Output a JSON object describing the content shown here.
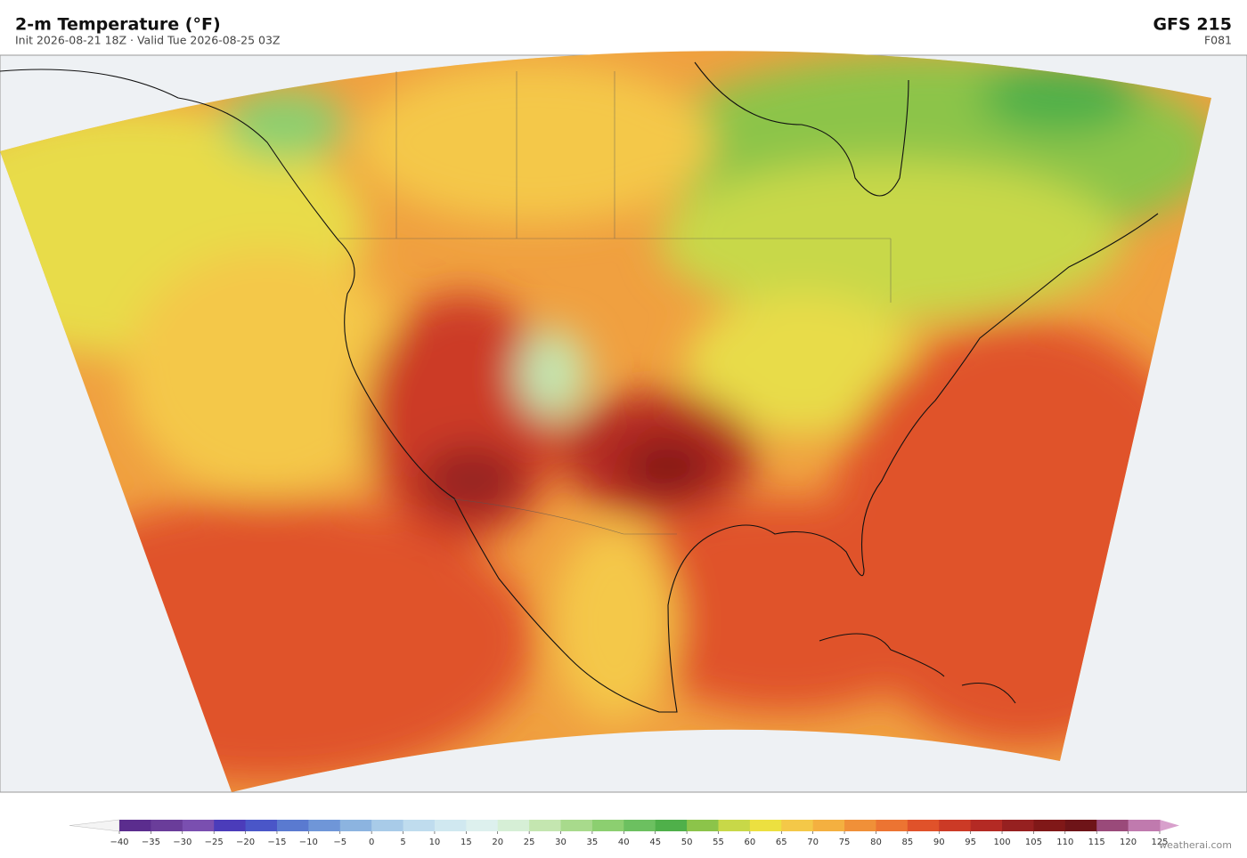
{
  "header": {
    "title": "2-m Temperature  (°F)",
    "subtitle": "Init 2026-08-21 18Z  ·  Valid Tue 2026-08-25 03Z",
    "model": "GFS  215",
    "forecast_hour": "F081"
  },
  "colorbar": {
    "ticks": [
      {
        "value": -40,
        "label": "−40"
      },
      {
        "value": -35,
        "label": "−35"
      },
      {
        "value": -30,
        "label": "−30"
      },
      {
        "value": -25,
        "label": "−25"
      },
      {
        "value": -20,
        "label": "−20"
      },
      {
        "value": -15,
        "label": "−15"
      },
      {
        "value": -10,
        "label": "−10"
      },
      {
        "value": -5,
        "label": "−5"
      },
      0,
      5,
      10,
      15,
      20,
      25,
      30,
      35,
      40,
      45,
      50,
      55,
      60,
      65,
      70,
      75,
      80,
      85,
      90,
      95,
      100,
      105,
      110,
      115,
      120,
      125
    ],
    "colors": [
      "#5b2d8e",
      "#6a3d9a",
      "#7a4fb0",
      "#4b3cba",
      "#4a56c8",
      "#5a7ad0",
      "#6f96d8",
      "#8cb4e0",
      "#a8cbe8",
      "#bfdcee",
      "#d0e8f0",
      "#ddf0ee",
      "#d6efd6",
      "#c4e6b0",
      "#a8da8c",
      "#8ccf70",
      "#6cc060",
      "#4fb04a",
      "#8cc44a",
      "#c8d848",
      "#ece040",
      "#f4c848",
      "#f4b040",
      "#f09038",
      "#ec7432",
      "#e0522a",
      "#cc3a26",
      "#b42a24",
      "#962020",
      "#801818",
      "#6e1418",
      "#9a4a7a",
      "#c07aae"
    ]
  },
  "footer": {
    "credit": "weatherai.com"
  }
}
